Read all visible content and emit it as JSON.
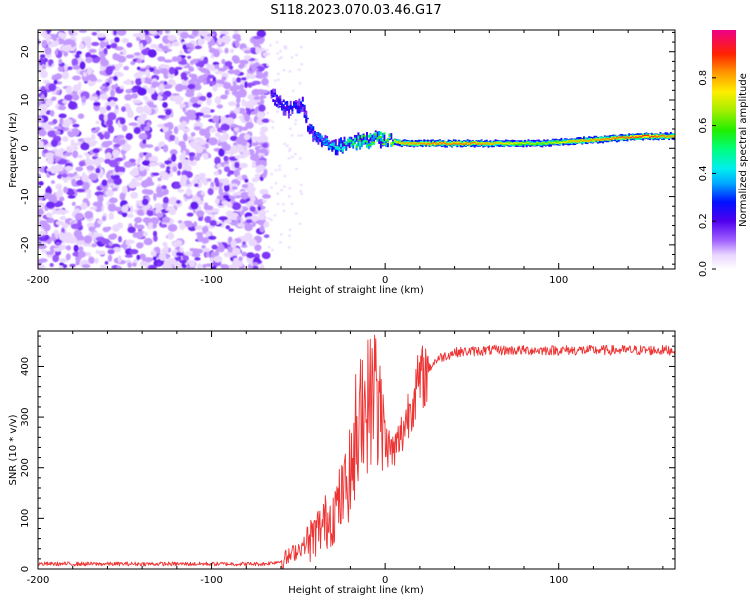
{
  "title": "S118.2023.070.03.46.G17",
  "chart_data": [
    {
      "type": "heatmap",
      "xlabel": "Height of straight line (km)",
      "ylabel": "Frequency (Hz)",
      "xlim": [
        -200,
        167
      ],
      "ylim": [
        -25,
        24.5
      ],
      "xticks": [
        -200,
        -100,
        0,
        100
      ],
      "yticks": [
        -20,
        -10,
        0,
        10,
        20
      ],
      "xtick_labels": [
        "-200",
        "-100",
        "0",
        "100"
      ],
      "ytick_labels": [
        "-20",
        "-10",
        "0",
        "10",
        "20"
      ],
      "colorbar": {
        "label": "Normalized spectral amplitude",
        "range": [
          0,
          1
        ],
        "ticks": [
          0.0,
          0.2,
          0.4,
          0.6,
          0.8
        ],
        "tick_labels": [
          "0.0",
          "0.2",
          "0.4",
          "0.6",
          "0.8"
        ],
        "colormap": "gist_ncar-like (white → purple → blue → cyan → green → yellow → orange → red → magenta)"
      },
      "noise_region": {
        "x_range": [
          -200,
          -68
        ],
        "y_range": [
          -25,
          24.5
        ],
        "amplitude_range": [
          0.05,
          0.15
        ]
      },
      "ridge": {
        "description": "strong narrow spectral line near 0–3 Hz from about -50 km to 167 km",
        "points": [
          {
            "x": -66,
            "y": 11,
            "amp": 0.25
          },
          {
            "x": -60,
            "y": 9,
            "amp": 0.3
          },
          {
            "x": -55,
            "y": 8,
            "amp": 0.3
          },
          {
            "x": -48,
            "y": 9,
            "amp": 0.3
          },
          {
            "x": -45,
            "y": 5,
            "amp": 0.3
          },
          {
            "x": -40,
            "y": 2,
            "amp": 0.35
          },
          {
            "x": -35,
            "y": 1,
            "amp": 0.4
          },
          {
            "x": -30,
            "y": 0,
            "amp": 0.45
          },
          {
            "x": -25,
            "y": 0.5,
            "amp": 0.5
          },
          {
            "x": -20,
            "y": 1,
            "amp": 0.55
          },
          {
            "x": -15,
            "y": 1.5,
            "amp": 0.6
          },
          {
            "x": -10,
            "y": 1.5,
            "amp": 0.6
          },
          {
            "x": -5,
            "y": 2,
            "amp": 0.6
          },
          {
            "x": 0,
            "y": 2,
            "amp": 0.65
          },
          {
            "x": 10,
            "y": 1,
            "amp": 0.8
          },
          {
            "x": 30,
            "y": 1,
            "amp": 0.85
          },
          {
            "x": 50,
            "y": 1,
            "amp": 0.85
          },
          {
            "x": 70,
            "y": 1,
            "amp": 0.75
          },
          {
            "x": 90,
            "y": 1,
            "amp": 0.65
          },
          {
            "x": 110,
            "y": 1.5,
            "amp": 0.8
          },
          {
            "x": 130,
            "y": 2,
            "amp": 0.85
          },
          {
            "x": 150,
            "y": 2.5,
            "amp": 0.9
          },
          {
            "x": 167,
            "y": 2.5,
            "amp": 0.8
          }
        ]
      }
    },
    {
      "type": "line",
      "xlabel": "Height of straight line (km)",
      "ylabel": "SNR (10 * v/v)",
      "xlim": [
        -200,
        167
      ],
      "ylim": [
        0,
        470
      ],
      "xticks": [
        -200,
        -100,
        0,
        100
      ],
      "yticks": [
        0,
        100,
        200,
        300,
        400
      ],
      "xtick_labels": [
        "-200",
        "-100",
        "0",
        "100"
      ],
      "ytick_labels": [
        "0",
        "100",
        "200",
        "300",
        "400"
      ],
      "series": [
        {
          "color": "#ee3333",
          "x": [
            -200,
            -150,
            -100,
            -70,
            -60,
            -55,
            -50,
            -45,
            -40,
            -35,
            -30,
            -25,
            -20,
            -15,
            -12,
            -10,
            -5,
            0,
            5,
            10,
            15,
            20,
            25,
            30,
            40,
            60,
            80,
            100,
            120,
            140,
            167
          ],
          "y": [
            10,
            10,
            10,
            10,
            15,
            25,
            40,
            50,
            70,
            90,
            110,
            140,
            190,
            250,
            300,
            330,
            330,
            250,
            230,
            270,
            330,
            370,
            395,
            415,
            428,
            432,
            432,
            432,
            432,
            432,
            432
          ]
        }
      ]
    }
  ]
}
